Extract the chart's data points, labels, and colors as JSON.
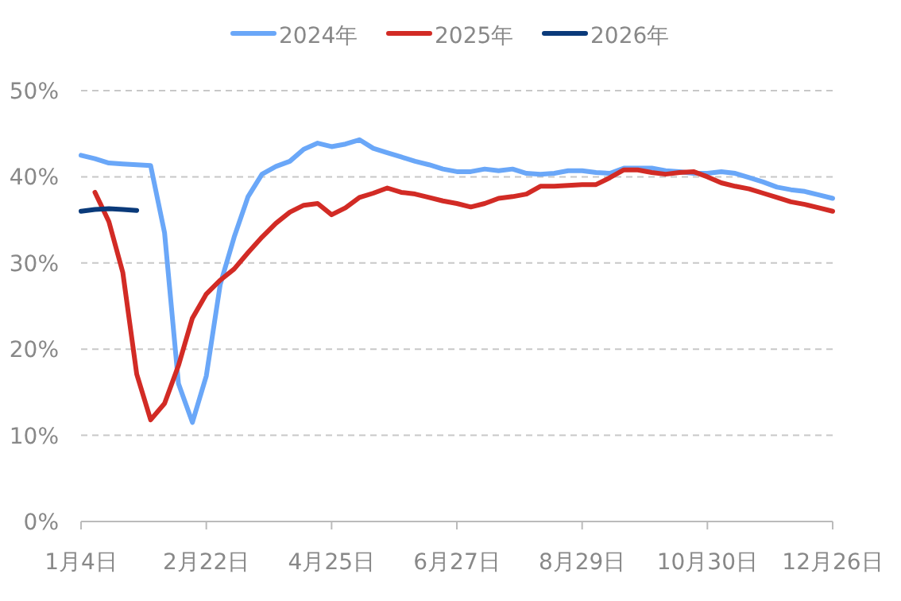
{
  "chart_data": {
    "type": "line",
    "categories": [
      "1月4日",
      null,
      null,
      null,
      null,
      null,
      null,
      null,
      null,
      "2月22日",
      null,
      null,
      null,
      null,
      null,
      null,
      null,
      null,
      "4月25日",
      null,
      null,
      null,
      null,
      null,
      null,
      null,
      null,
      "6月27日",
      null,
      null,
      null,
      null,
      null,
      null,
      null,
      null,
      "8月29日",
      null,
      null,
      null,
      null,
      null,
      null,
      null,
      null,
      "10月30日",
      null,
      null,
      null,
      null,
      null,
      null,
      null,
      null,
      "12月26日"
    ],
    "series": [
      {
        "name": "2024年",
        "color": "#6aa7f8",
        "values": [
          42.5,
          42.1,
          41.6,
          41.5,
          41.4,
          41.3,
          33.5,
          16.0,
          11.5,
          16.9,
          27.5,
          33.0,
          37.7,
          40.3,
          41.2,
          41.8,
          43.2,
          43.9,
          43.5,
          43.8,
          44.3,
          43.3,
          42.8,
          42.3,
          41.8,
          41.4,
          40.9,
          40.6,
          40.6,
          40.9,
          40.7,
          40.9,
          40.4,
          40.3,
          40.4,
          40.7,
          40.7,
          40.5,
          40.4,
          41.0,
          41.0,
          41.0,
          40.7,
          40.6,
          40.4,
          40.4,
          40.6,
          40.4,
          39.9,
          39.4,
          38.8,
          38.5,
          38.3,
          37.9,
          37.5
        ]
      },
      {
        "name": "2025年",
        "color": "#d22b25",
        "values": [
          null,
          38.2,
          34.8,
          28.9,
          17.1,
          11.8,
          13.7,
          18.1,
          23.6,
          26.4,
          28.0,
          29.3,
          31.2,
          33.0,
          34.6,
          35.9,
          36.7,
          36.9,
          35.6,
          36.4,
          37.6,
          38.1,
          38.7,
          38.2,
          38.0,
          37.6,
          37.2,
          36.9,
          36.5,
          36.9,
          37.5,
          37.7,
          38.0,
          38.9,
          38.9,
          39.0,
          39.1,
          39.1,
          39.9,
          40.8,
          40.8,
          40.5,
          40.3,
          40.5,
          40.6,
          40.0,
          39.3,
          38.9,
          38.6,
          38.1,
          37.6,
          37.1,
          36.8,
          36.4,
          36.0
        ]
      },
      {
        "name": "2026年",
        "color": "#0a3a7a",
        "values": [
          36.0,
          36.2,
          36.3,
          36.2,
          36.1,
          null,
          null,
          null,
          null,
          null,
          null,
          null,
          null,
          null,
          null,
          null,
          null,
          null,
          null,
          null,
          null,
          null,
          null,
          null,
          null,
          null,
          null,
          null,
          null,
          null,
          null,
          null,
          null,
          null,
          null,
          null,
          null,
          null,
          null,
          null,
          null,
          null,
          null,
          null,
          null,
          null,
          null,
          null,
          null,
          null,
          null,
          null,
          null,
          null,
          null
        ]
      }
    ],
    "ylim": [
      0,
      50
    ],
    "yticks": [
      {
        "value": 0,
        "label": "0%"
      },
      {
        "value": 10,
        "label": "10%"
      },
      {
        "value": 20,
        "label": "20%"
      },
      {
        "value": 30,
        "label": "30%"
      },
      {
        "value": 40,
        "label": "40%"
      },
      {
        "value": 50,
        "label": "50%"
      }
    ],
    "grid": "y",
    "legend": "top",
    "marker": "none",
    "line_style": "solid"
  }
}
